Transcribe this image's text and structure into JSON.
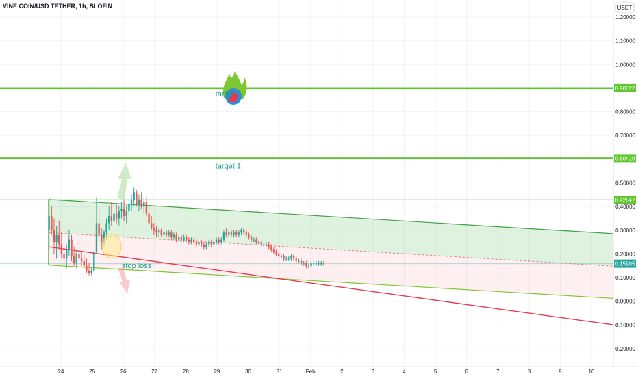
{
  "header": {
    "title": "VINE COIN/USD TETHER, 1h, BLOFIN"
  },
  "chart_data": {
    "type": "candlestick",
    "currency": "USDT",
    "ylim": [
      -0.23,
      1.25
    ],
    "y_ticks": [
      "1.20000",
      "1.10000",
      "1.00000",
      "0.90000",
      "0.80000",
      "0.70000",
      "0.60000",
      "0.50000",
      "0.40000",
      "0.30000",
      "0.20000",
      "0.10000",
      "0.00000",
      "−0.10000",
      "−0.20000"
    ],
    "y_tick_values": [
      1.2,
      1.1,
      1.0,
      0.9,
      0.8,
      0.7,
      0.6,
      0.5,
      0.4,
      0.3,
      0.2,
      0.1,
      0.0,
      -0.1,
      -0.2
    ],
    "x_ticks": [
      "24",
      "25",
      "26",
      "27",
      "28",
      "29",
      "30",
      "31",
      "Feb",
      "2",
      "3",
      "4",
      "5",
      "6",
      "7",
      "8",
      "9",
      "10"
    ],
    "x_tick_days": [
      24,
      25,
      26,
      27,
      28,
      29,
      30,
      31,
      32,
      33,
      34,
      35,
      36,
      37,
      38,
      39,
      40,
      41
    ],
    "xlim_days": [
      22.05,
      41.75
    ],
    "horizontal_levels": [
      {
        "label": "0.90022",
        "value": 0.90022,
        "color": "#5ec62e"
      },
      {
        "label": "0.60419",
        "value": 0.60419,
        "color": "#5ec62e"
      },
      {
        "label": "0.42847",
        "value": 0.42847,
        "color": "#5ec62e"
      }
    ],
    "last_price": {
      "label": "0.15905",
      "value": 0.15905,
      "color": "#26a69a"
    },
    "annotations": [
      {
        "text": "target 2",
        "day": 28.95,
        "value": 0.865
      },
      {
        "text": "target 1",
        "day": 28.95,
        "value": 0.56
      },
      {
        "text": "stop loss",
        "day": 25.95,
        "value": 0.14
      }
    ],
    "channel": {
      "upper": [
        [
          23.6,
          0.43
        ],
        [
          41.75,
          0.285
        ]
      ],
      "middle": [
        [
          23.6,
          0.29
        ],
        [
          41.75,
          0.148
        ]
      ],
      "lower": [
        [
          23.6,
          0.153
        ],
        [
          41.75,
          0.012
        ]
      ]
    },
    "stop_line": [
      [
        23.6,
        0.23
      ],
      [
        41.75,
        -0.1
      ]
    ],
    "candles": [
      [
        23.62,
        0.3,
        0.44,
        0.22,
        0.36
      ],
      [
        23.7,
        0.36,
        0.4,
        0.28,
        0.3
      ],
      [
        23.78,
        0.3,
        0.35,
        0.2,
        0.25
      ],
      [
        23.86,
        0.25,
        0.32,
        0.18,
        0.28
      ],
      [
        23.94,
        0.28,
        0.34,
        0.22,
        0.24
      ],
      [
        24.02,
        0.24,
        0.29,
        0.18,
        0.2
      ],
      [
        24.1,
        0.2,
        0.25,
        0.15,
        0.18
      ],
      [
        24.18,
        0.18,
        0.24,
        0.14,
        0.22
      ],
      [
        24.26,
        0.22,
        0.3,
        0.19,
        0.26
      ],
      [
        24.34,
        0.26,
        0.28,
        0.17,
        0.19
      ],
      [
        24.42,
        0.19,
        0.23,
        0.15,
        0.16
      ],
      [
        24.5,
        0.16,
        0.22,
        0.14,
        0.2
      ],
      [
        24.58,
        0.2,
        0.26,
        0.17,
        0.18
      ],
      [
        24.66,
        0.18,
        0.21,
        0.15,
        0.17
      ],
      [
        24.74,
        0.17,
        0.2,
        0.14,
        0.15
      ],
      [
        24.82,
        0.15,
        0.18,
        0.12,
        0.13
      ],
      [
        24.9,
        0.13,
        0.16,
        0.11,
        0.12
      ],
      [
        24.98,
        0.12,
        0.14,
        0.11,
        0.13
      ],
      [
        25.06,
        0.13,
        0.22,
        0.12,
        0.21
      ],
      [
        25.14,
        0.21,
        0.44,
        0.2,
        0.33
      ],
      [
        25.22,
        0.33,
        0.38,
        0.25,
        0.28
      ],
      [
        25.3,
        0.28,
        0.31,
        0.22,
        0.25
      ],
      [
        25.38,
        0.25,
        0.3,
        0.23,
        0.29
      ],
      [
        25.46,
        0.29,
        0.35,
        0.26,
        0.33
      ],
      [
        25.54,
        0.33,
        0.4,
        0.3,
        0.36
      ],
      [
        25.62,
        0.36,
        0.42,
        0.32,
        0.34
      ],
      [
        25.7,
        0.34,
        0.38,
        0.3,
        0.37
      ],
      [
        25.78,
        0.37,
        0.41,
        0.33,
        0.35
      ],
      [
        25.86,
        0.35,
        0.4,
        0.32,
        0.38
      ],
      [
        25.94,
        0.38,
        0.42,
        0.35,
        0.39
      ],
      [
        26.02,
        0.39,
        0.43,
        0.34,
        0.36
      ],
      [
        26.1,
        0.36,
        0.4,
        0.33,
        0.38
      ],
      [
        26.18,
        0.38,
        0.43,
        0.36,
        0.41
      ],
      [
        26.26,
        0.41,
        0.45,
        0.38,
        0.43
      ],
      [
        26.34,
        0.43,
        0.48,
        0.4,
        0.46
      ],
      [
        26.42,
        0.46,
        0.47,
        0.4,
        0.41
      ],
      [
        26.5,
        0.41,
        0.45,
        0.38,
        0.43
      ],
      [
        26.58,
        0.43,
        0.46,
        0.39,
        0.4
      ],
      [
        26.66,
        0.4,
        0.44,
        0.37,
        0.42
      ],
      [
        26.74,
        0.42,
        0.44,
        0.36,
        0.37
      ],
      [
        26.82,
        0.37,
        0.4,
        0.32,
        0.33
      ],
      [
        26.9,
        0.33,
        0.36,
        0.3,
        0.31
      ],
      [
        26.98,
        0.31,
        0.33,
        0.28,
        0.3
      ],
      [
        27.06,
        0.3,
        0.32,
        0.27,
        0.29
      ],
      [
        27.14,
        0.29,
        0.31,
        0.27,
        0.3
      ],
      [
        27.22,
        0.3,
        0.31,
        0.27,
        0.28
      ],
      [
        27.3,
        0.28,
        0.3,
        0.26,
        0.29
      ],
      [
        27.38,
        0.29,
        0.3,
        0.27,
        0.28
      ],
      [
        27.46,
        0.28,
        0.3,
        0.27,
        0.29
      ],
      [
        27.54,
        0.29,
        0.3,
        0.26,
        0.27
      ],
      [
        27.62,
        0.27,
        0.29,
        0.26,
        0.28
      ],
      [
        27.7,
        0.28,
        0.29,
        0.25,
        0.26
      ],
      [
        27.78,
        0.26,
        0.28,
        0.25,
        0.27
      ],
      [
        27.86,
        0.27,
        0.28,
        0.25,
        0.26
      ],
      [
        27.94,
        0.26,
        0.28,
        0.25,
        0.27
      ],
      [
        28.02,
        0.27,
        0.28,
        0.25,
        0.26
      ],
      [
        28.1,
        0.26,
        0.27,
        0.24,
        0.25
      ],
      [
        28.18,
        0.25,
        0.27,
        0.24,
        0.26
      ],
      [
        28.26,
        0.26,
        0.27,
        0.24,
        0.25
      ],
      [
        28.34,
        0.25,
        0.26,
        0.23,
        0.24
      ],
      [
        28.42,
        0.24,
        0.26,
        0.23,
        0.25
      ],
      [
        28.5,
        0.25,
        0.26,
        0.23,
        0.24
      ],
      [
        28.58,
        0.24,
        0.25,
        0.22,
        0.23
      ],
      [
        28.66,
        0.23,
        0.25,
        0.22,
        0.24
      ],
      [
        28.74,
        0.24,
        0.26,
        0.23,
        0.25
      ],
      [
        28.82,
        0.25,
        0.26,
        0.23,
        0.24
      ],
      [
        28.9,
        0.24,
        0.26,
        0.23,
        0.25
      ],
      [
        28.98,
        0.25,
        0.27,
        0.24,
        0.26
      ],
      [
        29.06,
        0.26,
        0.27,
        0.24,
        0.25
      ],
      [
        29.14,
        0.25,
        0.27,
        0.24,
        0.26
      ],
      [
        29.22,
        0.26,
        0.3,
        0.25,
        0.29
      ],
      [
        29.3,
        0.29,
        0.31,
        0.27,
        0.28
      ],
      [
        29.38,
        0.28,
        0.3,
        0.27,
        0.29
      ],
      [
        29.46,
        0.29,
        0.3,
        0.27,
        0.28
      ],
      [
        29.54,
        0.28,
        0.3,
        0.27,
        0.29
      ],
      [
        29.62,
        0.29,
        0.3,
        0.27,
        0.28
      ],
      [
        29.7,
        0.28,
        0.3,
        0.27,
        0.29
      ],
      [
        29.78,
        0.29,
        0.31,
        0.28,
        0.3
      ],
      [
        29.86,
        0.3,
        0.31,
        0.28,
        0.29
      ],
      [
        29.94,
        0.29,
        0.3,
        0.27,
        0.28
      ],
      [
        30.02,
        0.28,
        0.29,
        0.26,
        0.27
      ],
      [
        30.1,
        0.27,
        0.28,
        0.25,
        0.26
      ],
      [
        30.18,
        0.26,
        0.27,
        0.25,
        0.26
      ],
      [
        30.26,
        0.26,
        0.27,
        0.24,
        0.25
      ],
      [
        30.34,
        0.25,
        0.26,
        0.24,
        0.25
      ],
      [
        30.42,
        0.25,
        0.26,
        0.23,
        0.24
      ],
      [
        30.5,
        0.24,
        0.25,
        0.23,
        0.24
      ],
      [
        30.58,
        0.24,
        0.25,
        0.23,
        0.24
      ],
      [
        30.66,
        0.24,
        0.25,
        0.22,
        0.23
      ],
      [
        30.74,
        0.23,
        0.24,
        0.21,
        0.22
      ],
      [
        30.82,
        0.22,
        0.23,
        0.2,
        0.21
      ],
      [
        30.9,
        0.21,
        0.22,
        0.19,
        0.2
      ],
      [
        30.98,
        0.2,
        0.21,
        0.18,
        0.19
      ],
      [
        31.06,
        0.19,
        0.2,
        0.18,
        0.19
      ],
      [
        31.14,
        0.19,
        0.2,
        0.17,
        0.18
      ],
      [
        31.22,
        0.18,
        0.19,
        0.17,
        0.18
      ],
      [
        31.3,
        0.18,
        0.19,
        0.17,
        0.18
      ],
      [
        31.38,
        0.18,
        0.2,
        0.17,
        0.19
      ],
      [
        31.46,
        0.19,
        0.2,
        0.17,
        0.18
      ],
      [
        31.54,
        0.18,
        0.19,
        0.16,
        0.17
      ],
      [
        31.62,
        0.17,
        0.18,
        0.16,
        0.17
      ],
      [
        31.7,
        0.17,
        0.18,
        0.15,
        0.16
      ],
      [
        31.78,
        0.16,
        0.17,
        0.15,
        0.16
      ],
      [
        31.86,
        0.16,
        0.17,
        0.14,
        0.15
      ],
      [
        31.94,
        0.15,
        0.16,
        0.14,
        0.15
      ],
      [
        32.02,
        0.15,
        0.17,
        0.14,
        0.16
      ],
      [
        32.1,
        0.16,
        0.17,
        0.15,
        0.16
      ],
      [
        32.18,
        0.16,
        0.17,
        0.15,
        0.16
      ],
      [
        32.26,
        0.16,
        0.17,
        0.15,
        0.16
      ],
      [
        32.34,
        0.16,
        0.17,
        0.15,
        0.16
      ],
      [
        32.42,
        0.16,
        0.17,
        0.15,
        0.159
      ]
    ]
  }
}
